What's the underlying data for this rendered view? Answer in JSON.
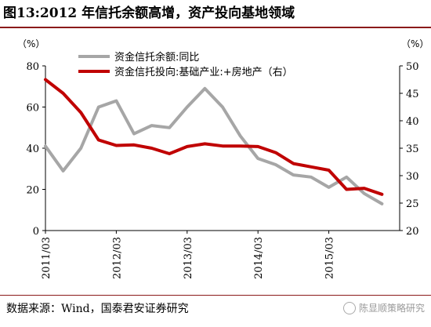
{
  "title": "图13:2012 年信托余额高增，资产投向基地领域",
  "source": "数据来源：Wind，国泰君安证券研究",
  "watermark": "陈显顺策略研究",
  "chart_data": {
    "type": "line",
    "left_unit": "（%）",
    "right_unit": "（%）",
    "left_axis": {
      "min": 0,
      "max": 80,
      "ticks": [
        0,
        20,
        40,
        60,
        80
      ]
    },
    "right_axis": {
      "min": 20,
      "max": 50,
      "ticks": [
        20,
        25,
        30,
        35,
        40,
        45,
        50
      ]
    },
    "x_ticks": [
      "2011/03",
      "2012/03",
      "2013/03",
      "2014/03",
      "2015/03"
    ],
    "x_range": [
      0,
      20
    ],
    "x_tick_positions": [
      0,
      4,
      8,
      12,
      16
    ],
    "series": [
      {
        "name": "资金信托余额:同比",
        "axis": "left",
        "color": "#a6a6a6",
        "x": [
          0,
          1,
          2,
          3,
          4,
          5,
          6,
          7,
          8,
          9,
          10,
          11,
          12,
          13,
          14,
          15,
          16,
          17,
          18,
          19
        ],
        "values": [
          41,
          29,
          40,
          60,
          63,
          47,
          51,
          50,
          60,
          69,
          60,
          46,
          35,
          32,
          27,
          26,
          21,
          26,
          18,
          13
        ]
      },
      {
        "name": "资金信托投向:基础产业:+房地产（右）",
        "axis": "right",
        "color": "#c00000",
        "x": [
          0,
          1,
          2,
          3,
          4,
          5,
          6,
          7,
          8,
          9,
          10,
          11,
          12,
          13,
          14,
          15,
          16,
          17,
          18,
          19
        ],
        "values": [
          47.5,
          45.0,
          41.5,
          36.5,
          35.5,
          35.6,
          35.0,
          34.0,
          35.3,
          35.8,
          35.4,
          35.4,
          35.3,
          34.2,
          32.2,
          31.6,
          31.0,
          27.5,
          27.7,
          26.6
        ]
      }
    ]
  }
}
